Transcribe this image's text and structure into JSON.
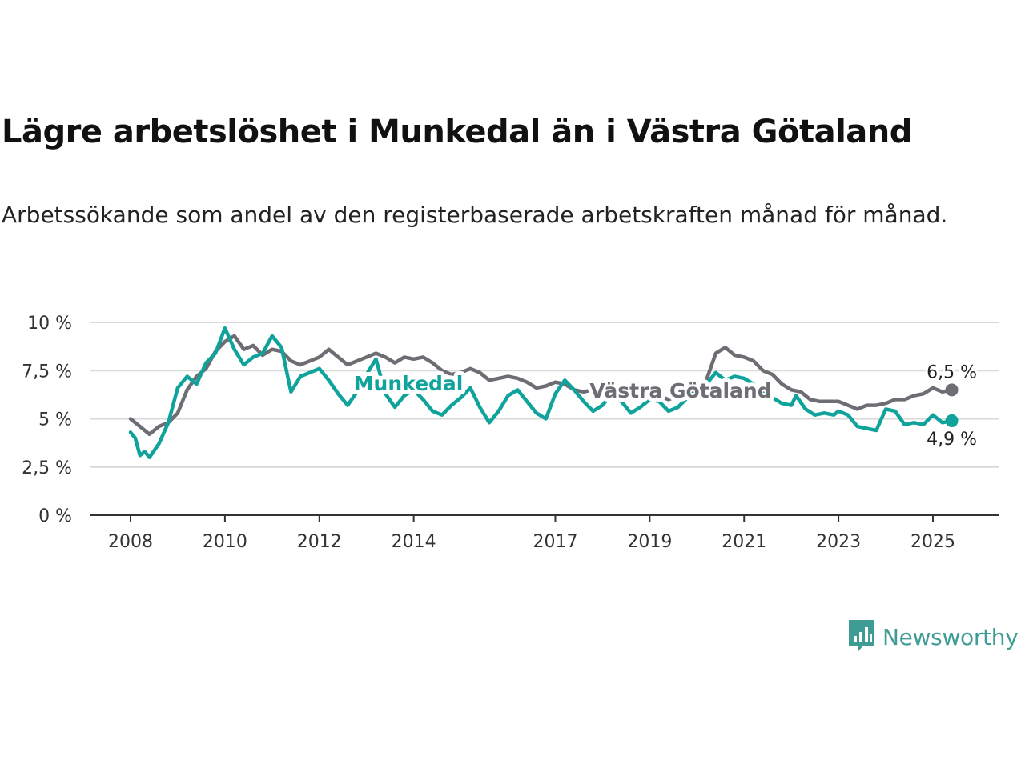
{
  "title": "Lägre arbetslöshet i Munkedal än i Västra Götaland",
  "subtitle": "Arbetssökande som andel av den registerbaserade arbetskraften månad för månad.",
  "brand": {
    "name": "Newsworthy",
    "icon": "newsworthy-chart-icon",
    "color": "#3f9c95"
  },
  "chart_data": {
    "type": "line",
    "x_unit": "year (decimal, monthly data)",
    "xlim": [
      2007.8,
      2026.4
    ],
    "ylim": [
      0,
      10
    ],
    "yticks": [
      0,
      2.5,
      5,
      7.5,
      10
    ],
    "ytick_labels": [
      "0 %",
      "2,5 %",
      "5 %",
      "7,5 %",
      "10 %"
    ],
    "xticks": [
      2008,
      2010,
      2012,
      2014,
      2017,
      2019,
      2021,
      2023,
      2025
    ],
    "xtick_labels": [
      "2008",
      "2010",
      "2012",
      "2014",
      "2017",
      "2019",
      "2021",
      "2023",
      "2025"
    ],
    "grid": "horizontal",
    "legend": "inline labels",
    "series": [
      {
        "name": "Västra Götaland",
        "color": "#6e6d73",
        "end_label": "6,5 %",
        "points": [
          [
            2008.0,
            5.0
          ],
          [
            2008.2,
            4.6
          ],
          [
            2008.4,
            4.2
          ],
          [
            2008.6,
            4.6
          ],
          [
            2008.8,
            4.8
          ],
          [
            2009.0,
            5.3
          ],
          [
            2009.2,
            6.5
          ],
          [
            2009.4,
            7.2
          ],
          [
            2009.6,
            7.6
          ],
          [
            2009.8,
            8.5
          ],
          [
            2010.0,
            9.0
          ],
          [
            2010.2,
            9.3
          ],
          [
            2010.4,
            8.6
          ],
          [
            2010.6,
            8.8
          ],
          [
            2010.8,
            8.3
          ],
          [
            2011.0,
            8.6
          ],
          [
            2011.2,
            8.5
          ],
          [
            2011.4,
            8.0
          ],
          [
            2011.6,
            7.8
          ],
          [
            2011.8,
            8.0
          ],
          [
            2012.0,
            8.2
          ],
          [
            2012.2,
            8.6
          ],
          [
            2012.4,
            8.2
          ],
          [
            2012.6,
            7.8
          ],
          [
            2012.8,
            8.0
          ],
          [
            2013.0,
            8.2
          ],
          [
            2013.2,
            8.4
          ],
          [
            2013.4,
            8.2
          ],
          [
            2013.6,
            7.9
          ],
          [
            2013.8,
            8.2
          ],
          [
            2014.0,
            8.1
          ],
          [
            2014.2,
            8.2
          ],
          [
            2014.4,
            7.9
          ],
          [
            2014.6,
            7.5
          ],
          [
            2014.8,
            7.3
          ],
          [
            2015.0,
            7.4
          ],
          [
            2015.2,
            7.6
          ],
          [
            2015.4,
            7.4
          ],
          [
            2015.6,
            7.0
          ],
          [
            2015.8,
            7.1
          ],
          [
            2016.0,
            7.2
          ],
          [
            2016.2,
            7.1
          ],
          [
            2016.4,
            6.9
          ],
          [
            2016.6,
            6.6
          ],
          [
            2016.8,
            6.7
          ],
          [
            2017.0,
            6.9
          ],
          [
            2017.2,
            6.8
          ],
          [
            2017.4,
            6.5
          ],
          [
            2017.6,
            6.4
          ],
          [
            2017.8,
            6.5
          ],
          [
            2018.0,
            6.4
          ],
          [
            2018.2,
            6.4
          ],
          [
            2018.4,
            6.3
          ],
          [
            2018.6,
            6.1
          ],
          [
            2018.8,
            6.2
          ],
          [
            2019.0,
            6.3
          ],
          [
            2019.2,
            6.2
          ],
          [
            2019.4,
            6.0
          ],
          [
            2019.6,
            6.2
          ],
          [
            2019.8,
            6.3
          ],
          [
            2020.0,
            6.3
          ],
          [
            2020.2,
            7.0
          ],
          [
            2020.4,
            8.4
          ],
          [
            2020.6,
            8.7
          ],
          [
            2020.8,
            8.3
          ],
          [
            2021.0,
            8.2
          ],
          [
            2021.2,
            8.0
          ],
          [
            2021.4,
            7.5
          ],
          [
            2021.6,
            7.3
          ],
          [
            2021.8,
            6.8
          ],
          [
            2022.0,
            6.5
          ],
          [
            2022.2,
            6.4
          ],
          [
            2022.4,
            6.0
          ],
          [
            2022.6,
            5.9
          ],
          [
            2022.8,
            5.9
          ],
          [
            2023.0,
            5.9
          ],
          [
            2023.2,
            5.7
          ],
          [
            2023.4,
            5.5
          ],
          [
            2023.6,
            5.7
          ],
          [
            2023.8,
            5.7
          ],
          [
            2024.0,
            5.8
          ],
          [
            2024.2,
            6.0
          ],
          [
            2024.4,
            6.0
          ],
          [
            2024.6,
            6.2
          ],
          [
            2024.8,
            6.3
          ],
          [
            2025.0,
            6.6
          ],
          [
            2025.2,
            6.4
          ],
          [
            2025.4,
            6.5
          ]
        ]
      },
      {
        "name": "Munkedal",
        "color": "#0fa39b",
        "end_label": "4,9 %",
        "points": [
          [
            2008.0,
            4.3
          ],
          [
            2008.1,
            4.0
          ],
          [
            2008.2,
            3.1
          ],
          [
            2008.3,
            3.3
          ],
          [
            2008.4,
            3.0
          ],
          [
            2008.6,
            3.7
          ],
          [
            2008.8,
            4.8
          ],
          [
            2009.0,
            6.6
          ],
          [
            2009.2,
            7.2
          ],
          [
            2009.4,
            6.8
          ],
          [
            2009.6,
            7.9
          ],
          [
            2009.8,
            8.4
          ],
          [
            2010.0,
            9.7
          ],
          [
            2010.2,
            8.6
          ],
          [
            2010.4,
            7.8
          ],
          [
            2010.6,
            8.2
          ],
          [
            2010.8,
            8.4
          ],
          [
            2011.0,
            9.3
          ],
          [
            2011.2,
            8.7
          ],
          [
            2011.4,
            6.4
          ],
          [
            2011.6,
            7.2
          ],
          [
            2011.8,
            7.4
          ],
          [
            2012.0,
            7.6
          ],
          [
            2012.2,
            7.0
          ],
          [
            2012.4,
            6.3
          ],
          [
            2012.6,
            5.7
          ],
          [
            2012.8,
            6.4
          ],
          [
            2013.0,
            7.3
          ],
          [
            2013.2,
            8.1
          ],
          [
            2013.4,
            6.3
          ],
          [
            2013.6,
            5.6
          ],
          [
            2013.8,
            6.2
          ],
          [
            2014.0,
            6.5
          ],
          [
            2014.2,
            6.0
          ],
          [
            2014.4,
            5.4
          ],
          [
            2014.6,
            5.2
          ],
          [
            2014.8,
            5.7
          ],
          [
            2015.0,
            6.1
          ],
          [
            2015.2,
            6.6
          ],
          [
            2015.4,
            5.6
          ],
          [
            2015.6,
            4.8
          ],
          [
            2015.8,
            5.4
          ],
          [
            2016.0,
            6.2
          ],
          [
            2016.2,
            6.5
          ],
          [
            2016.4,
            5.9
          ],
          [
            2016.6,
            5.3
          ],
          [
            2016.8,
            5.0
          ],
          [
            2017.0,
            6.3
          ],
          [
            2017.2,
            7.0
          ],
          [
            2017.4,
            6.5
          ],
          [
            2017.6,
            5.9
          ],
          [
            2017.8,
            5.4
          ],
          [
            2018.0,
            5.7
          ],
          [
            2018.2,
            6.3
          ],
          [
            2018.4,
            5.9
          ],
          [
            2018.6,
            5.3
          ],
          [
            2018.8,
            5.6
          ],
          [
            2019.0,
            6.0
          ],
          [
            2019.2,
            5.9
          ],
          [
            2019.4,
            5.4
          ],
          [
            2019.6,
            5.6
          ],
          [
            2019.8,
            6.1
          ],
          [
            2020.0,
            6.5
          ],
          [
            2020.2,
            6.8
          ],
          [
            2020.4,
            7.4
          ],
          [
            2020.6,
            7.0
          ],
          [
            2020.8,
            7.2
          ],
          [
            2021.0,
            7.1
          ],
          [
            2021.2,
            6.8
          ],
          [
            2021.4,
            6.4
          ],
          [
            2021.6,
            6.1
          ],
          [
            2021.8,
            5.8
          ],
          [
            2022.0,
            5.7
          ],
          [
            2022.1,
            6.2
          ],
          [
            2022.3,
            5.5
          ],
          [
            2022.5,
            5.2
          ],
          [
            2022.7,
            5.3
          ],
          [
            2022.9,
            5.2
          ],
          [
            2023.0,
            5.4
          ],
          [
            2023.2,
            5.2
          ],
          [
            2023.4,
            4.6
          ],
          [
            2023.6,
            4.5
          ],
          [
            2023.8,
            4.4
          ],
          [
            2024.0,
            5.5
          ],
          [
            2024.2,
            5.4
          ],
          [
            2024.4,
            4.7
          ],
          [
            2024.6,
            4.8
          ],
          [
            2024.8,
            4.7
          ],
          [
            2025.0,
            5.2
          ],
          [
            2025.2,
            4.8
          ],
          [
            2025.4,
            4.9
          ]
        ]
      }
    ]
  }
}
